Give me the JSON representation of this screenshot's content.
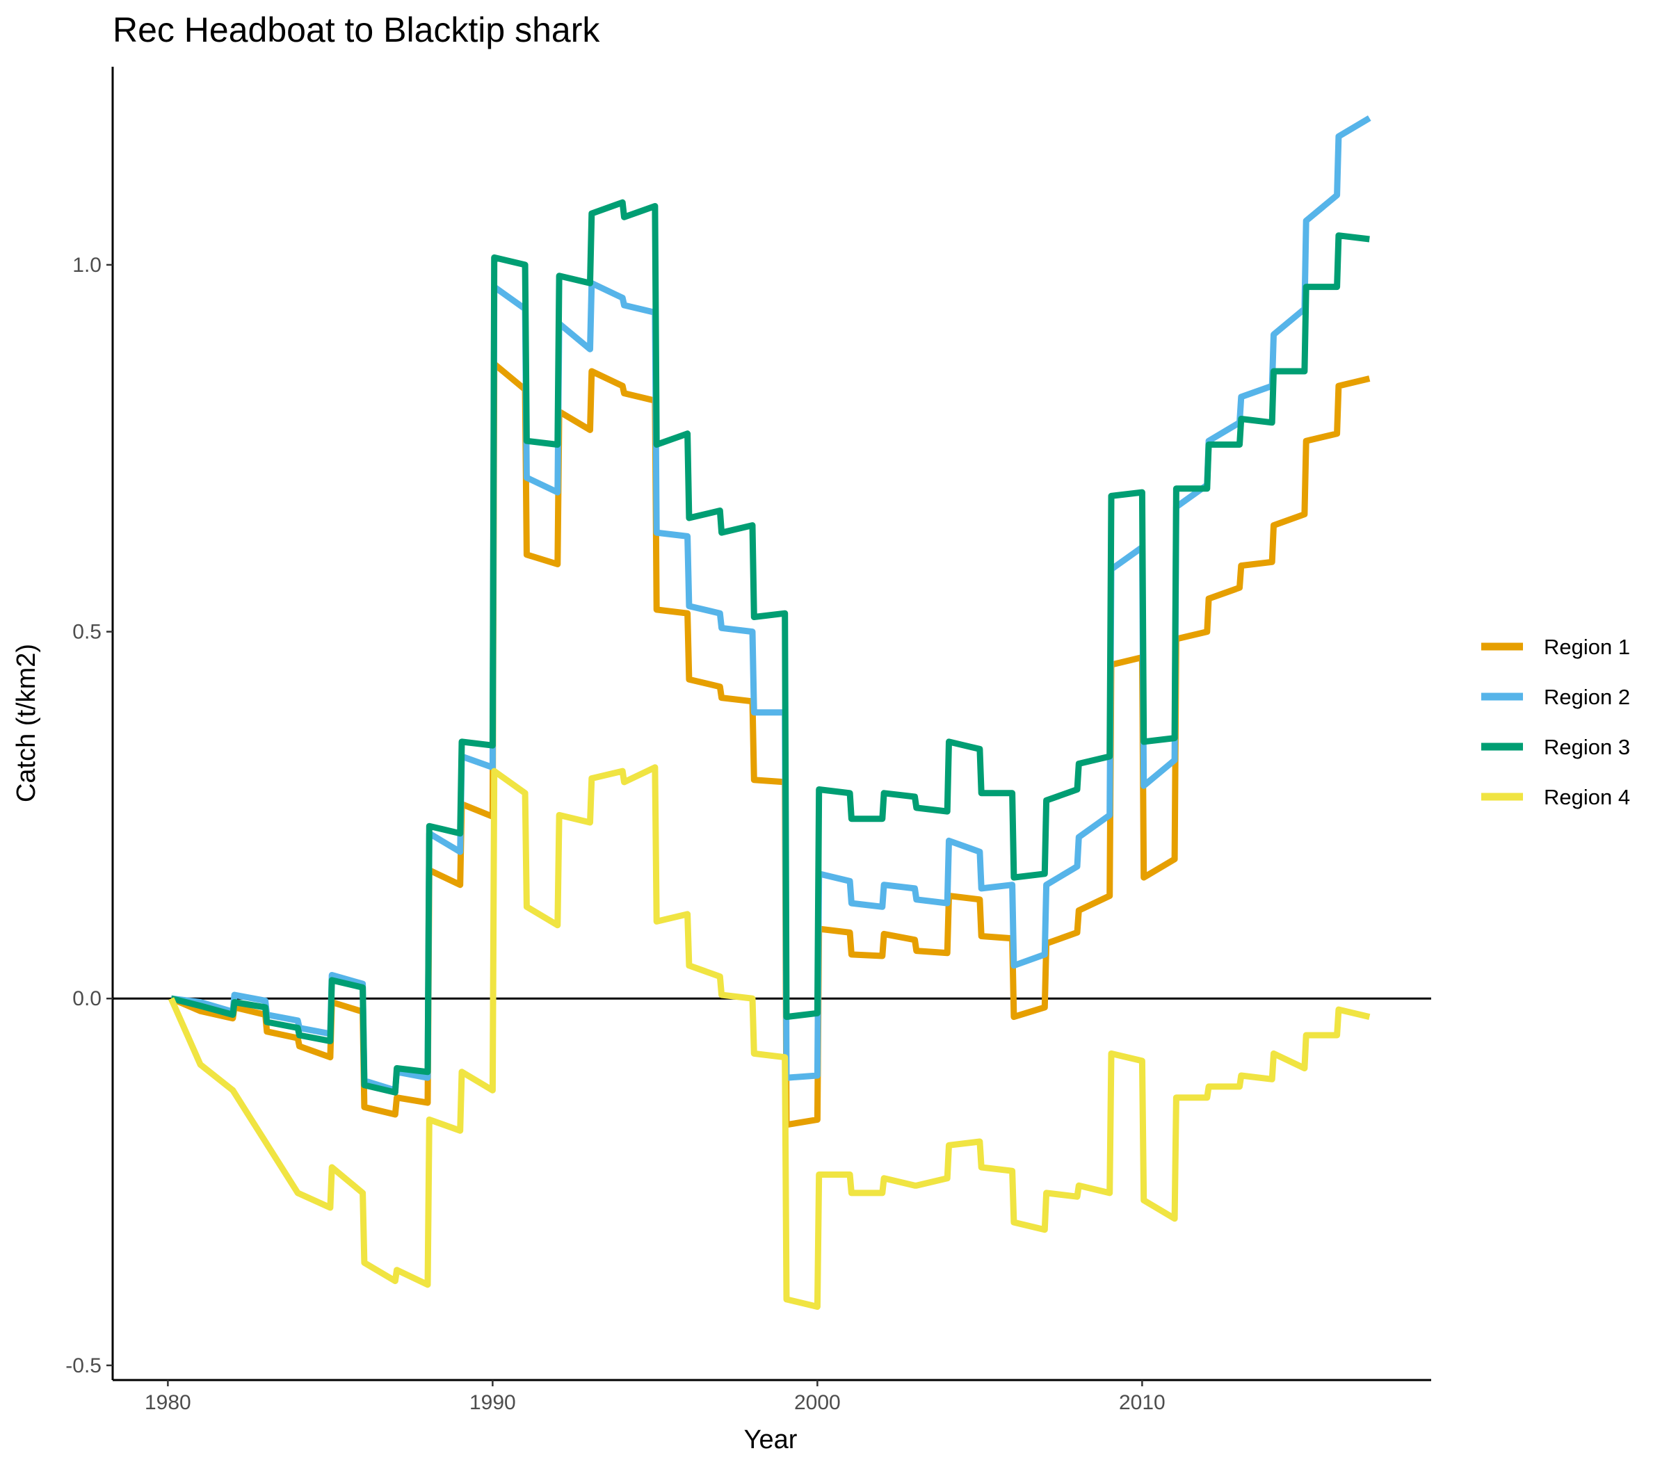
{
  "chart_data": {
    "type": "line",
    "title": "Rec Headboat to Blacktip shark",
    "xlabel": "Year",
    "ylabel": "Catch (t/km2)",
    "xlim": [
      1978.3,
      2018.9
    ],
    "ylim": [
      -0.52,
      1.27
    ],
    "x_ticks": [
      1980,
      1990,
      2000,
      2010
    ],
    "x_tick_labels": [
      "1980",
      "1990",
      "2000",
      "2010"
    ],
    "y_ticks": [
      -0.5,
      0,
      0.5,
      1
    ],
    "y_tick_labels": [
      "-0.5",
      "0.0",
      "0.5",
      "1.0"
    ],
    "zero_line": true,
    "grid": false,
    "legend_position": "right",
    "series": [
      {
        "name": "Region 1",
        "color": "#E69F00",
        "points": [
          [
            1980.1,
            0
          ],
          [
            1981,
            -0.017
          ],
          [
            1982,
            -0.027
          ],
          [
            1982.05,
            -0.012
          ],
          [
            1983,
            -0.022
          ],
          [
            1983.05,
            -0.045
          ],
          [
            1984,
            -0.054
          ],
          [
            1984.05,
            -0.065
          ],
          [
            1985,
            -0.08
          ],
          [
            1985.05,
            -0.005
          ],
          [
            1986,
            -0.018
          ],
          [
            1986.05,
            -0.148
          ],
          [
            1987,
            -0.158
          ],
          [
            1987.05,
            -0.135
          ],
          [
            1988,
            -0.142
          ],
          [
            1988.05,
            0.175
          ],
          [
            1989,
            0.155
          ],
          [
            1989.05,
            0.265
          ],
          [
            1990,
            0.248
          ],
          [
            1990.05,
            0.865
          ],
          [
            1991,
            0.83
          ],
          [
            1991.05,
            0.605
          ],
          [
            1992,
            0.592
          ],
          [
            1992.05,
            0.8
          ],
          [
            1993,
            0.775
          ],
          [
            1993.05,
            0.855
          ],
          [
            1994,
            0.835
          ],
          [
            1994.05,
            0.825
          ],
          [
            1995,
            0.815
          ],
          [
            1995.05,
            0.53
          ],
          [
            1996,
            0.525
          ],
          [
            1996.05,
            0.435
          ],
          [
            1997,
            0.425
          ],
          [
            1997.05,
            0.41
          ],
          [
            1998,
            0.405
          ],
          [
            1998.05,
            0.298
          ],
          [
            1999,
            0.295
          ],
          [
            1999.05,
            -0.172
          ],
          [
            2000,
            -0.165
          ],
          [
            2000.05,
            0.095
          ],
          [
            2001,
            0.09
          ],
          [
            2001.05,
            0.06
          ],
          [
            2002,
            0.058
          ],
          [
            2002.05,
            0.088
          ],
          [
            2003,
            0.08
          ],
          [
            2003.05,
            0.065
          ],
          [
            2004,
            0.062
          ],
          [
            2004.05,
            0.14
          ],
          [
            2005,
            0.135
          ],
          [
            2005.05,
            0.085
          ],
          [
            2006,
            0.082
          ],
          [
            2006.05,
            -0.025
          ],
          [
            2007,
            -0.012
          ],
          [
            2007.05,
            0.075
          ],
          [
            2008,
            0.09
          ],
          [
            2008.05,
            0.12
          ],
          [
            2009,
            0.14
          ],
          [
            2009.05,
            0.455
          ],
          [
            2010,
            0.465
          ],
          [
            2010.05,
            0.165
          ],
          [
            2011,
            0.19
          ],
          [
            2011.05,
            0.49
          ],
          [
            2012,
            0.5
          ],
          [
            2012.05,
            0.545
          ],
          [
            2013,
            0.56
          ],
          [
            2013.05,
            0.59
          ],
          [
            2014,
            0.595
          ],
          [
            2014.05,
            0.645
          ],
          [
            2015,
            0.66
          ],
          [
            2015.05,
            0.76
          ],
          [
            2016,
            0.77
          ],
          [
            2016.05,
            0.835
          ],
          [
            2017,
            0.845
          ]
        ]
      },
      {
        "name": "Region 2",
        "color": "#56B4E9",
        "points": [
          [
            1980.1,
            0
          ],
          [
            1981,
            -0.005
          ],
          [
            1982,
            -0.018
          ],
          [
            1982.05,
            0.005
          ],
          [
            1983,
            -0.003
          ],
          [
            1983.05,
            -0.022
          ],
          [
            1984,
            -0.03
          ],
          [
            1984.05,
            -0.04
          ],
          [
            1985,
            -0.048
          ],
          [
            1985.05,
            0.032
          ],
          [
            1986,
            0.02
          ],
          [
            1986.05,
            -0.112
          ],
          [
            1987,
            -0.125
          ],
          [
            1987.05,
            -0.1
          ],
          [
            1988,
            -0.108
          ],
          [
            1988.05,
            0.225
          ],
          [
            1989,
            0.2
          ],
          [
            1989.05,
            0.33
          ],
          [
            1990,
            0.315
          ],
          [
            1990.05,
            0.97
          ],
          [
            1991,
            0.94
          ],
          [
            1991.05,
            0.71
          ],
          [
            1992,
            0.69
          ],
          [
            1992.05,
            0.92
          ],
          [
            1993,
            0.885
          ],
          [
            1993.05,
            0.975
          ],
          [
            1994,
            0.955
          ],
          [
            1994.05,
            0.945
          ],
          [
            1995,
            0.935
          ],
          [
            1995.05,
            0.635
          ],
          [
            1996,
            0.63
          ],
          [
            1996.05,
            0.535
          ],
          [
            1997,
            0.525
          ],
          [
            1997.05,
            0.505
          ],
          [
            1998,
            0.5
          ],
          [
            1998.05,
            0.39
          ],
          [
            1999,
            0.39
          ],
          [
            1999.05,
            -0.108
          ],
          [
            2000,
            -0.105
          ],
          [
            2000.05,
            0.17
          ],
          [
            2001,
            0.16
          ],
          [
            2001.05,
            0.13
          ],
          [
            2002,
            0.125
          ],
          [
            2002.05,
            0.155
          ],
          [
            2003,
            0.15
          ],
          [
            2003.05,
            0.135
          ],
          [
            2004,
            0.13
          ],
          [
            2004.05,
            0.215
          ],
          [
            2005,
            0.2
          ],
          [
            2005.05,
            0.15
          ],
          [
            2006,
            0.155
          ],
          [
            2006.05,
            0.045
          ],
          [
            2007,
            0.06
          ],
          [
            2007.05,
            0.155
          ],
          [
            2008,
            0.18
          ],
          [
            2008.05,
            0.22
          ],
          [
            2009,
            0.25
          ],
          [
            2009.05,
            0.585
          ],
          [
            2010,
            0.615
          ],
          [
            2010.05,
            0.29
          ],
          [
            2011,
            0.325
          ],
          [
            2011.05,
            0.67
          ],
          [
            2012,
            0.7
          ],
          [
            2012.05,
            0.76
          ],
          [
            2013,
            0.785
          ],
          [
            2013.05,
            0.82
          ],
          [
            2014,
            0.835
          ],
          [
            2014.05,
            0.905
          ],
          [
            2015,
            0.94
          ],
          [
            2015.05,
            1.06
          ],
          [
            2016,
            1.095
          ],
          [
            2016.05,
            1.175
          ],
          [
            2017,
            1.2
          ]
        ]
      },
      {
        "name": "Region 3",
        "color": "#009E73",
        "points": [
          [
            1980.1,
            0
          ],
          [
            1981,
            -0.01
          ],
          [
            1982,
            -0.022
          ],
          [
            1982.05,
            -0.005
          ],
          [
            1983,
            -0.012
          ],
          [
            1983.05,
            -0.032
          ],
          [
            1984,
            -0.04
          ],
          [
            1984.05,
            -0.05
          ],
          [
            1985,
            -0.058
          ],
          [
            1985.05,
            0.025
          ],
          [
            1986,
            0.015
          ],
          [
            1986.05,
            -0.118
          ],
          [
            1987,
            -0.128
          ],
          [
            1987.05,
            -0.095
          ],
          [
            1988,
            -0.1
          ],
          [
            1988.05,
            0.235
          ],
          [
            1989,
            0.225
          ],
          [
            1989.05,
            0.35
          ],
          [
            1990,
            0.345
          ],
          [
            1990.05,
            1.01
          ],
          [
            1991,
            1
          ],
          [
            1991.05,
            0.76
          ],
          [
            1992,
            0.755
          ],
          [
            1992.05,
            0.985
          ],
          [
            1993,
            0.975
          ],
          [
            1993.05,
            1.07
          ],
          [
            1994,
            1.085
          ],
          [
            1994.05,
            1.065
          ],
          [
            1995,
            1.08
          ],
          [
            1995.05,
            0.755
          ],
          [
            1996,
            0.77
          ],
          [
            1996.05,
            0.655
          ],
          [
            1997,
            0.665
          ],
          [
            1997.05,
            0.635
          ],
          [
            1998,
            0.645
          ],
          [
            1998.05,
            0.52
          ],
          [
            1999,
            0.525
          ],
          [
            1999.05,
            -0.025
          ],
          [
            2000,
            -0.02
          ],
          [
            2000.05,
            0.285
          ],
          [
            2001,
            0.28
          ],
          [
            2001.05,
            0.245
          ],
          [
            2002,
            0.245
          ],
          [
            2002.05,
            0.28
          ],
          [
            2003,
            0.275
          ],
          [
            2003.05,
            0.26
          ],
          [
            2004,
            0.255
          ],
          [
            2004.05,
            0.35
          ],
          [
            2005,
            0.34
          ],
          [
            2005.05,
            0.28
          ],
          [
            2006,
            0.28
          ],
          [
            2006.05,
            0.165
          ],
          [
            2007,
            0.17
          ],
          [
            2007.05,
            0.27
          ],
          [
            2008,
            0.285
          ],
          [
            2008.05,
            0.32
          ],
          [
            2009,
            0.33
          ],
          [
            2009.05,
            0.685
          ],
          [
            2010,
            0.69
          ],
          [
            2010.05,
            0.35
          ],
          [
            2011,
            0.355
          ],
          [
            2011.05,
            0.695
          ],
          [
            2012,
            0.695
          ],
          [
            2012.05,
            0.755
          ],
          [
            2013,
            0.755
          ],
          [
            2013.05,
            0.79
          ],
          [
            2014,
            0.785
          ],
          [
            2014.05,
            0.855
          ],
          [
            2015,
            0.855
          ],
          [
            2015.05,
            0.97
          ],
          [
            2016,
            0.97
          ],
          [
            2016.05,
            1.04
          ],
          [
            2017,
            1.035
          ]
        ]
      },
      {
        "name": "Region 4",
        "color": "#F0E442",
        "points": [
          [
            1980.1,
            0
          ],
          [
            1981,
            -0.09
          ],
          [
            1982,
            -0.125
          ],
          [
            1982.5,
            -0.16
          ],
          [
            1983,
            -0.195
          ],
          [
            1984,
            -0.265
          ],
          [
            1985,
            -0.285
          ],
          [
            1985.05,
            -0.23
          ],
          [
            1986,
            -0.265
          ],
          [
            1986.05,
            -0.36
          ],
          [
            1987,
            -0.385
          ],
          [
            1987.05,
            -0.37
          ],
          [
            1988,
            -0.39
          ],
          [
            1988.05,
            -0.165
          ],
          [
            1989,
            -0.18
          ],
          [
            1989.05,
            -0.1
          ],
          [
            1990,
            -0.125
          ],
          [
            1990.05,
            0.31
          ],
          [
            1991,
            0.28
          ],
          [
            1991.05,
            0.125
          ],
          [
            1992,
            0.1
          ],
          [
            1992.05,
            0.25
          ],
          [
            1993,
            0.24
          ],
          [
            1993.05,
            0.3
          ],
          [
            1994,
            0.31
          ],
          [
            1994.05,
            0.295
          ],
          [
            1995,
            0.315
          ],
          [
            1995.05,
            0.105
          ],
          [
            1996,
            0.115
          ],
          [
            1996.05,
            0.045
          ],
          [
            1997,
            0.03
          ],
          [
            1997.05,
            0.005
          ],
          [
            1998,
            0
          ],
          [
            1998.05,
            -0.075
          ],
          [
            1999,
            -0.08
          ],
          [
            1999.05,
            -0.41
          ],
          [
            2000,
            -0.42
          ],
          [
            2000.05,
            -0.24
          ],
          [
            2001,
            -0.24
          ],
          [
            2001.05,
            -0.265
          ],
          [
            2002,
            -0.265
          ],
          [
            2002.05,
            -0.245
          ],
          [
            2003,
            -0.255
          ],
          [
            2003.05,
            -0.255
          ],
          [
            2004,
            -0.245
          ],
          [
            2004.05,
            -0.2
          ],
          [
            2005,
            -0.195
          ],
          [
            2005.05,
            -0.23
          ],
          [
            2006,
            -0.235
          ],
          [
            2006.05,
            -0.305
          ],
          [
            2007,
            -0.315
          ],
          [
            2007.05,
            -0.265
          ],
          [
            2008,
            -0.27
          ],
          [
            2008.05,
            -0.255
          ],
          [
            2009,
            -0.265
          ],
          [
            2009.05,
            -0.075
          ],
          [
            2010,
            -0.085
          ],
          [
            2010.05,
            -0.275
          ],
          [
            2011,
            -0.3
          ],
          [
            2011.05,
            -0.135
          ],
          [
            2012,
            -0.135
          ],
          [
            2012.05,
            -0.12
          ],
          [
            2013,
            -0.12
          ],
          [
            2013.05,
            -0.105
          ],
          [
            2014,
            -0.11
          ],
          [
            2014.05,
            -0.075
          ],
          [
            2015,
            -0.095
          ],
          [
            2015.05,
            -0.05
          ],
          [
            2016,
            -0.05
          ],
          [
            2016.05,
            -0.015
          ],
          [
            2017,
            -0.025
          ]
        ]
      }
    ]
  }
}
